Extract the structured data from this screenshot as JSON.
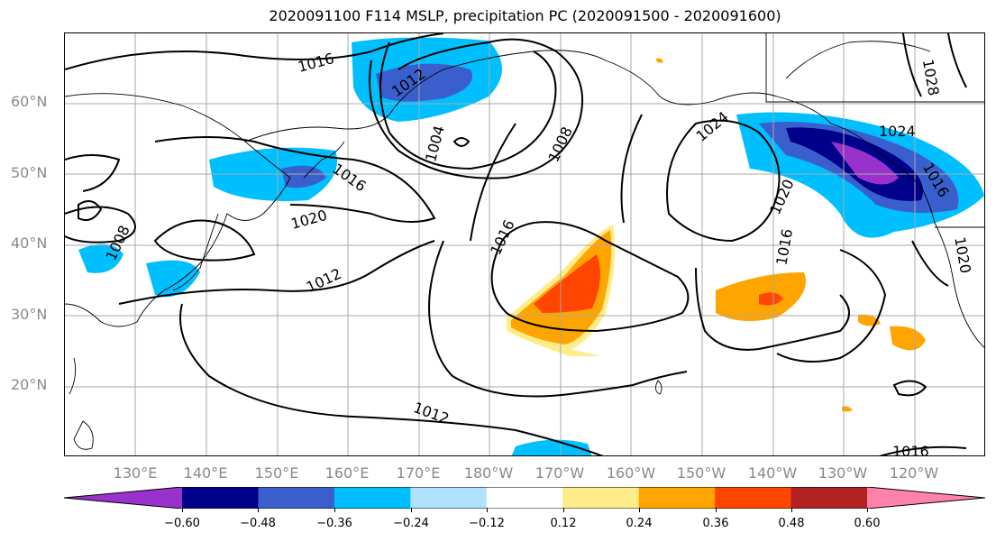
{
  "title": "2020091100 F114 MSLP, precipitation PC (2020091500 - 2020091600)",
  "lat_labels": [
    "60°N",
    "50°N",
    "40°N",
    "30°N",
    "20°N"
  ],
  "lon_labels": [
    "130°E",
    "140°E",
    "150°E",
    "160°E",
    "170°E",
    "180°W",
    "170°W",
    "160°W",
    "150°W",
    "140°W",
    "130°W",
    "120°W"
  ],
  "contour_labels": [
    "1016",
    "1012",
    "1004",
    "1008",
    "1024",
    "1024",
    "1016",
    "1020",
    "1016",
    "1012",
    "1012",
    "1016",
    "1020",
    "1016",
    "1008",
    "1020",
    "1028",
    "1016"
  ],
  "colorbar": {
    "colors": [
      "#9932cc",
      "#00008b",
      "#3a5fcd",
      "#00bfff",
      "#b0e2ff",
      "#ffffff",
      "#ffec8b",
      "#ffa500",
      "#ff4500",
      "#b22222",
      "#ff82ab"
    ],
    "tick_labels": [
      "−0.60",
      "−0.48",
      "−0.36",
      "−0.24",
      "−0.12",
      "0.12",
      "0.24",
      "0.36",
      "0.48",
      "0.60"
    ]
  }
}
